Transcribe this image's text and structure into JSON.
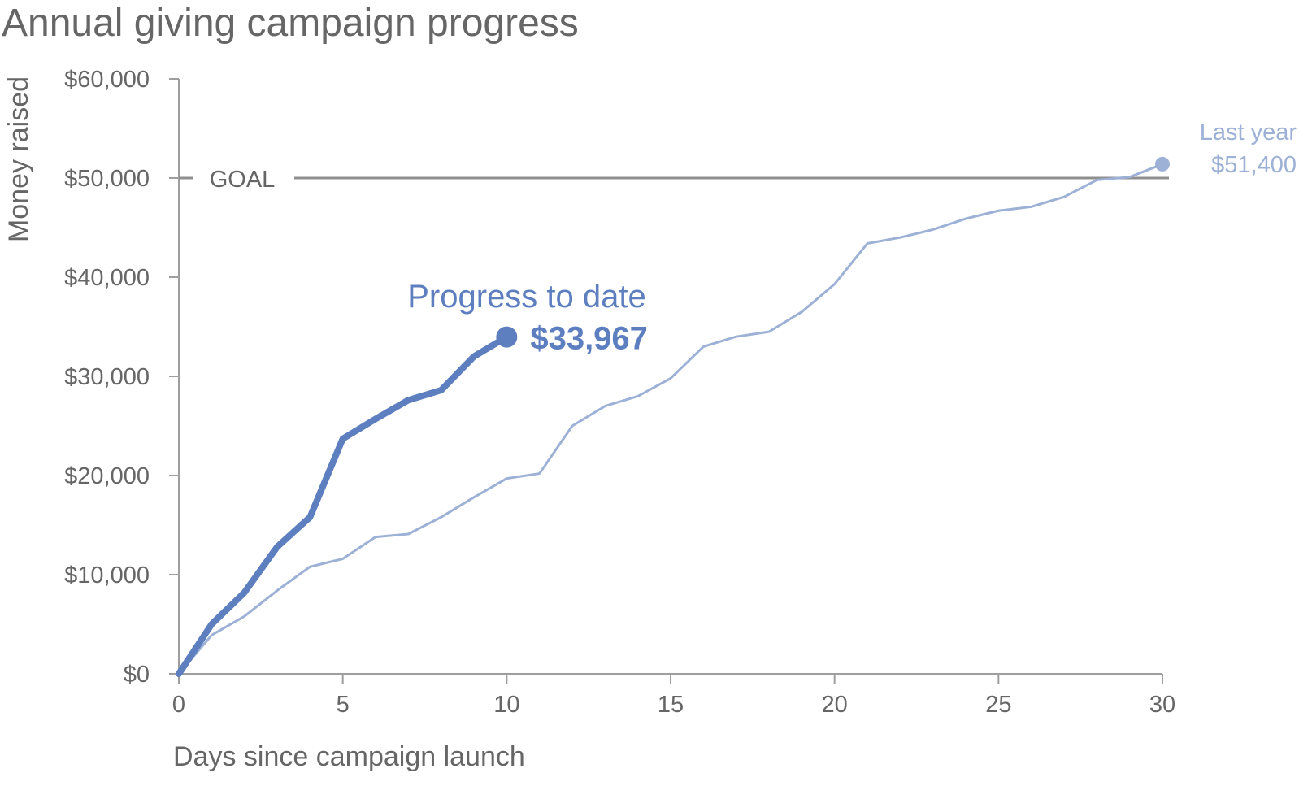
{
  "chart_data": {
    "type": "line",
    "title": "Annual giving campaign progress",
    "xlabel": "Days since campaign launch",
    "ylabel": "Money raised",
    "xlim": [
      0,
      30
    ],
    "ylim": [
      0,
      60000
    ],
    "x_ticks": [
      0,
      5,
      10,
      15,
      20,
      25,
      30
    ],
    "x_tick_labels": [
      "0",
      "5",
      "10",
      "15",
      "20",
      "25",
      "30"
    ],
    "y_ticks": [
      0,
      10000,
      20000,
      30000,
      40000,
      50000,
      60000
    ],
    "y_tick_labels": [
      "$0",
      "$10,000",
      "$20,000",
      "$30,000",
      "$40,000",
      "$50,000",
      "$60,000"
    ],
    "grid": false,
    "goal": {
      "value": 50000,
      "label": "GOAL"
    },
    "series": [
      {
        "key": "last_year",
        "x": [
          0,
          1,
          2,
          3,
          4,
          5,
          6,
          7,
          8,
          9,
          10,
          11,
          12,
          13,
          14,
          15,
          16,
          17,
          18,
          19,
          20,
          21,
          22,
          23,
          24,
          25,
          26,
          27,
          28,
          29,
          30
        ],
        "values": [
          0,
          3900,
          5800,
          8400,
          10800,
          11600,
          13800,
          14100,
          15800,
          17800,
          19700,
          20200,
          25000,
          27000,
          28000,
          29800,
          33000,
          34000,
          34500,
          36500,
          39300,
          43400,
          44000,
          44800,
          45900,
          46700,
          47100,
          48100,
          49800,
          50100,
          51400
        ],
        "color": "#9db1d6",
        "end_label": "Last year",
        "end_value_label": "$51,400"
      },
      {
        "key": "this_year",
        "x": [
          0,
          1,
          2,
          3,
          4,
          5,
          6,
          7,
          8,
          9,
          10
        ],
        "values": [
          0,
          5000,
          8200,
          12800,
          15800,
          23700,
          25700,
          27600,
          28600,
          32000,
          33967
        ],
        "color": "#5d7ebf",
        "end_label": "Progress to date",
        "end_value_label": "$33,967"
      }
    ]
  }
}
